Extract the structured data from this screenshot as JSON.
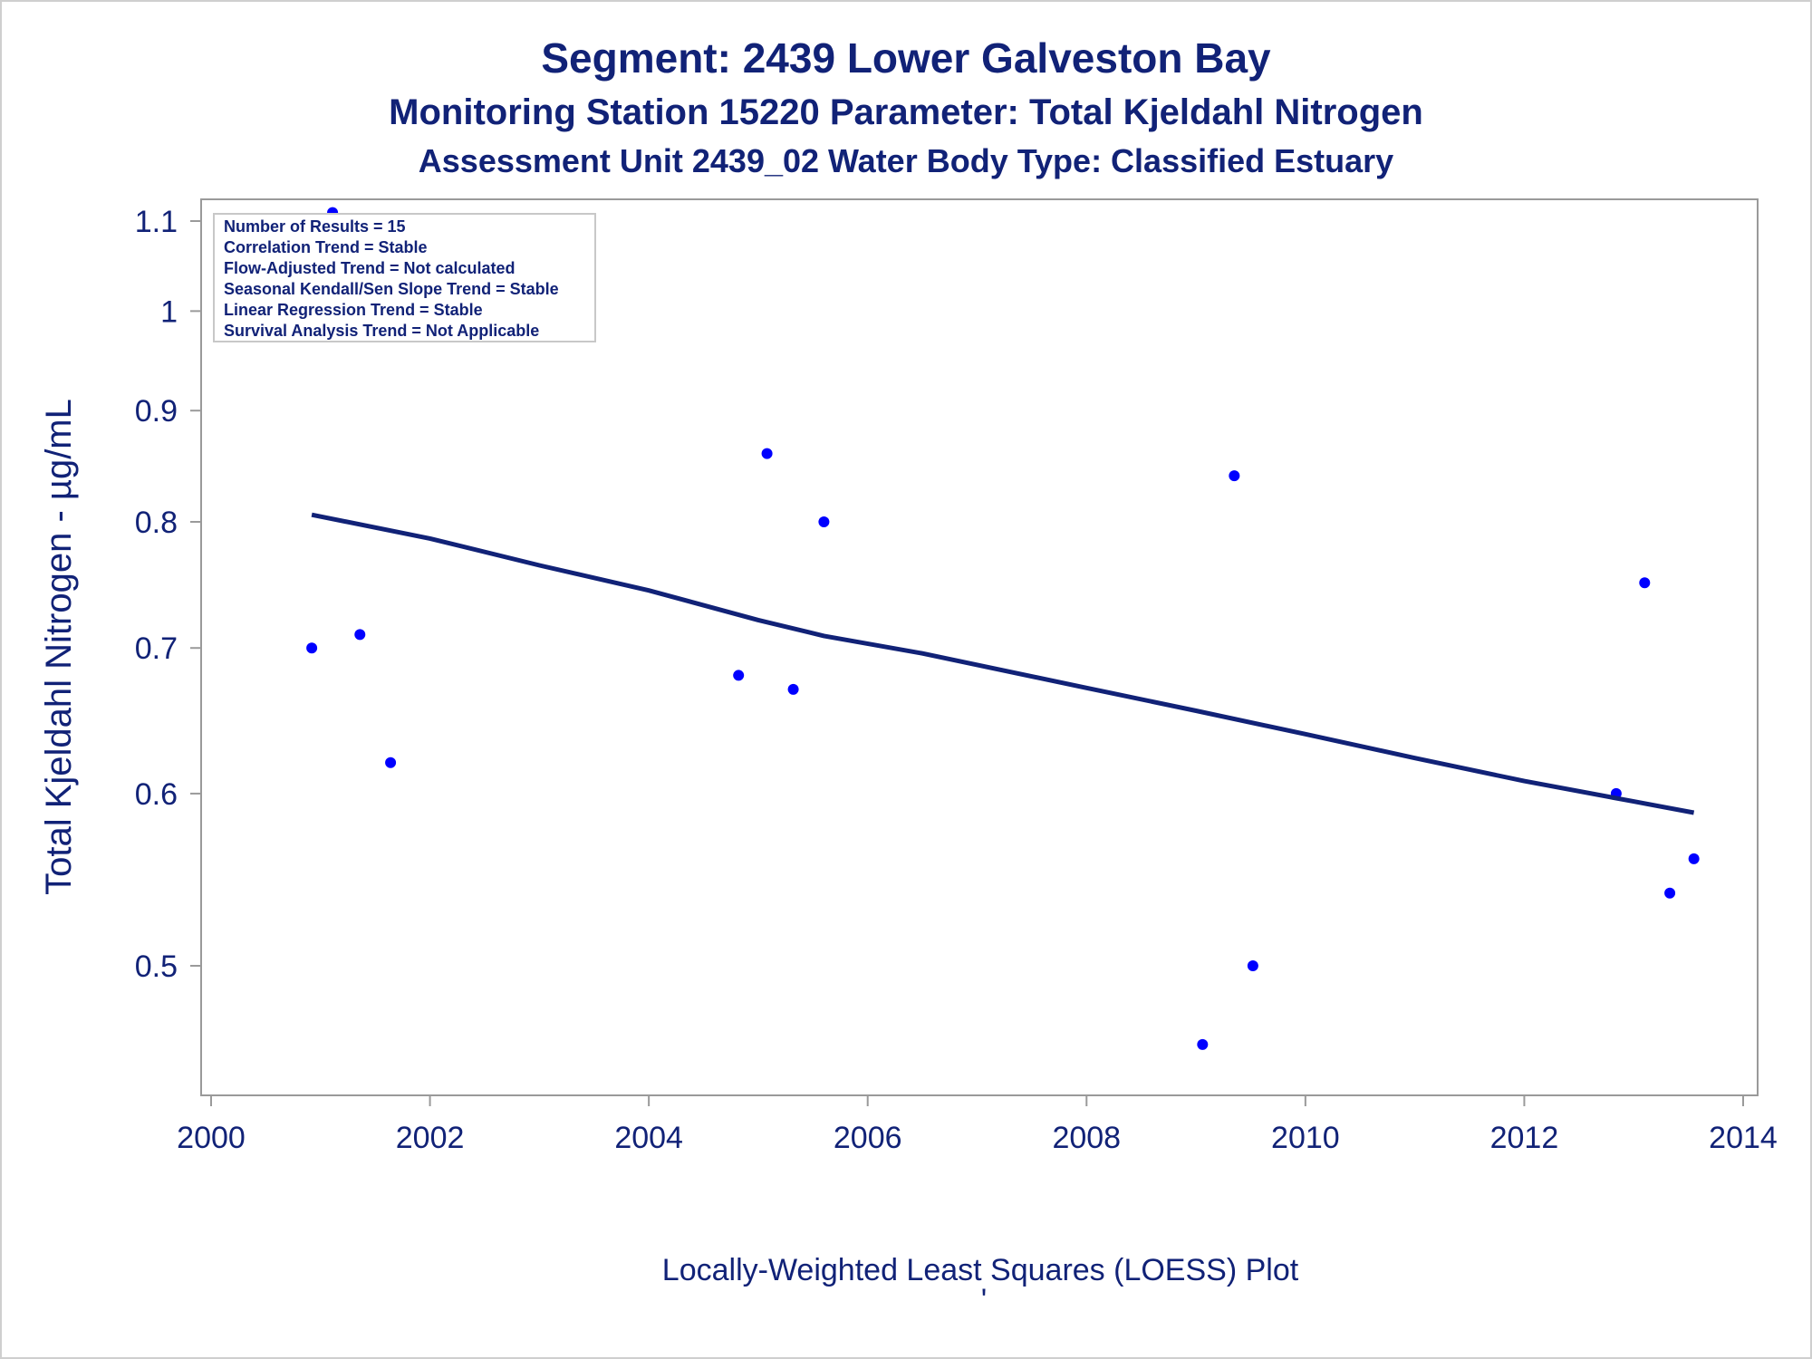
{
  "chart_data": {
    "type": "scatter",
    "title": "Segment: 2439  Lower Galveston Bay",
    "subtitle": "Monitoring Station 15220 Parameter: Total Kjeldahl Nitrogen",
    "subtitle2": "Assessment Unit 2439_02   Water Body Type: Classified Estuary",
    "xlabel": "",
    "ylabel": "Total Kjeldahl Nitrogen -  µg/mL",
    "footnote": "Locally-Weighted Least Squares (LOESS) Plot",
    "footnote2": "'",
    "x_scale": "linear",
    "y_scale": "log",
    "xlim": [
      2000,
      2014
    ],
    "ylim": [
      0.45,
      1.12
    ],
    "x_ticks": [
      2000,
      2002,
      2004,
      2006,
      2008,
      2010,
      2012,
      2014
    ],
    "x_tick_labels": [
      "2000",
      "2002",
      "2004",
      "2006",
      "2008",
      "2010",
      "2012",
      "2014"
    ],
    "y_ticks": [
      0.5,
      0.6,
      0.7,
      0.8,
      0.9,
      1,
      1.1
    ],
    "y_tick_labels": [
      "0.5",
      "0.6",
      "0.7",
      "0.8",
      "0.9",
      "1",
      "1.1"
    ],
    "grid": false,
    "legend": "none",
    "stats_box": [
      "Number of Results = 15",
      "Correlation Trend = Stable",
      "Flow-Adjusted Trend = Not calculated",
      "Seasonal Kendall/Sen Slope Trend = Stable",
      "Linear Regression Trend = Stable",
      "Survival Analysis Trend = Not Applicable"
    ],
    "stats_box_position": "top-left",
    "series": [
      {
        "kind": "points",
        "color": "#0000ff",
        "points": [
          {
            "x": 2000.92,
            "y": 0.7
          },
          {
            "x": 2001.11,
            "y": 1.11
          },
          {
            "x": 2001.36,
            "y": 0.71
          },
          {
            "x": 2001.64,
            "y": 0.62
          },
          {
            "x": 2004.82,
            "y": 0.68
          },
          {
            "x": 2005.08,
            "y": 0.86
          },
          {
            "x": 2005.32,
            "y": 0.67
          },
          {
            "x": 2005.6,
            "y": 0.8
          },
          {
            "x": 2009.06,
            "y": 0.46
          },
          {
            "x": 2009.35,
            "y": 0.84
          },
          {
            "x": 2009.52,
            "y": 0.5
          },
          {
            "x": 2012.84,
            "y": 0.6
          },
          {
            "x": 2013.1,
            "y": 0.75
          },
          {
            "x": 2013.33,
            "y": 0.54
          },
          {
            "x": 2013.55,
            "y": 0.56
          }
        ]
      },
      {
        "kind": "loess-line",
        "color": "#112277",
        "points": [
          {
            "x": 2000.92,
            "y": 0.806
          },
          {
            "x": 2002.0,
            "y": 0.786
          },
          {
            "x": 2003.0,
            "y": 0.764
          },
          {
            "x": 2004.0,
            "y": 0.744
          },
          {
            "x": 2005.0,
            "y": 0.721
          },
          {
            "x": 2005.6,
            "y": 0.709
          },
          {
            "x": 2006.5,
            "y": 0.696
          },
          {
            "x": 2008.0,
            "y": 0.671
          },
          {
            "x": 2009.0,
            "y": 0.655
          },
          {
            "x": 2010.0,
            "y": 0.639
          },
          {
            "x": 2011.0,
            "y": 0.623
          },
          {
            "x": 2012.0,
            "y": 0.608
          },
          {
            "x": 2013.0,
            "y": 0.595
          },
          {
            "x": 2013.55,
            "y": 0.588
          }
        ]
      }
    ]
  }
}
